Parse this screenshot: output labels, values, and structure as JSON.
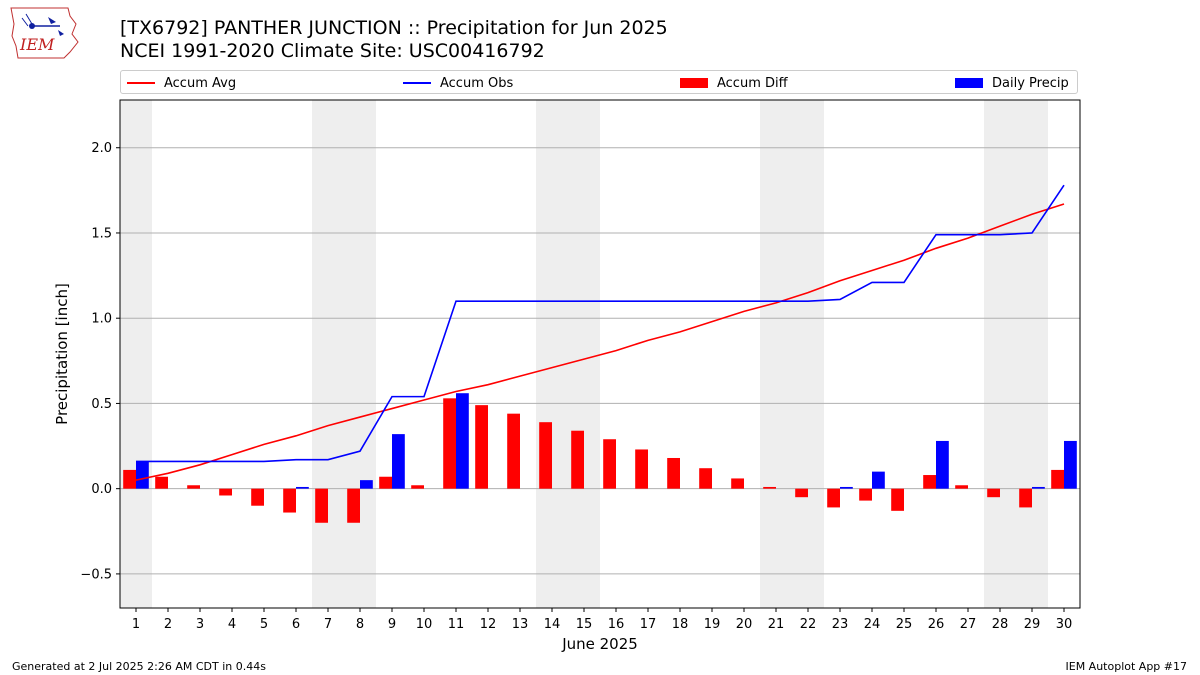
{
  "header": {
    "logo_text": "IEM",
    "title_line1": "[TX6792] PANTHER JUNCTION :: Precipitation for Jun 2025",
    "title_line2": "NCEI 1991-2020 Climate Site: USC00416792"
  },
  "legend": {
    "accum_avg": "Accum Avg",
    "accum_obs": "Accum Obs",
    "accum_diff": "Accum Diff",
    "daily_precip": "Daily Precip"
  },
  "colors": {
    "avg": "#ff0000",
    "obs": "#0000ff",
    "diff": "#ff0000",
    "daily": "#0000ff",
    "weekend_band": "#eeeeee",
    "grid": "#b0b0b0"
  },
  "footer": {
    "left": "Generated at 2 Jul 2025 2:26 AM CDT in 0.44s",
    "right": "IEM Autoplot App #17"
  },
  "chart_data": {
    "type": "bar",
    "xlabel": "June 2025",
    "ylabel": "Precipitation [inch]",
    "x": [
      1,
      2,
      3,
      4,
      5,
      6,
      7,
      8,
      9,
      10,
      11,
      12,
      13,
      14,
      15,
      16,
      17,
      18,
      19,
      20,
      21,
      22,
      23,
      24,
      25,
      26,
      27,
      28,
      29,
      30
    ],
    "xlim": [
      0.5,
      30.5
    ],
    "ylim": [
      -0.7,
      2.28
    ],
    "yticks": [
      -0.5,
      0.0,
      0.5,
      1.0,
      1.5,
      2.0
    ],
    "ytick_labels": [
      "−0.5",
      "0.0",
      "0.5",
      "1.0",
      "1.5",
      "2.0"
    ],
    "grid": "horizontal",
    "weekend_bands": [
      [
        0.5,
        1.5
      ],
      [
        6.5,
        8.5
      ],
      [
        13.5,
        15.5
      ],
      [
        20.5,
        22.5
      ],
      [
        27.5,
        29.5
      ]
    ],
    "series": [
      {
        "name": "Accum Avg",
        "type": "line",
        "values": [
          0.05,
          0.09,
          0.14,
          0.2,
          0.26,
          0.31,
          0.37,
          0.42,
          0.47,
          0.52,
          0.57,
          0.61,
          0.66,
          0.71,
          0.76,
          0.81,
          0.87,
          0.92,
          0.98,
          1.04,
          1.09,
          1.15,
          1.22,
          1.28,
          1.34,
          1.41,
          1.47,
          1.54,
          1.61,
          1.67
        ]
      },
      {
        "name": "Accum Obs",
        "type": "line",
        "values": [
          0.16,
          0.16,
          0.16,
          0.16,
          0.16,
          0.17,
          0.17,
          0.22,
          0.54,
          0.54,
          1.1,
          1.1,
          1.1,
          1.1,
          1.1,
          1.1,
          1.1,
          1.1,
          1.1,
          1.1,
          1.1,
          1.1,
          1.11,
          1.21,
          1.21,
          1.49,
          1.49,
          1.49,
          1.5,
          1.78
        ]
      },
      {
        "name": "Accum Diff",
        "type": "bar",
        "values": [
          0.11,
          0.07,
          0.02,
          -0.04,
          -0.1,
          -0.14,
          -0.2,
          -0.2,
          0.07,
          0.02,
          0.53,
          0.49,
          0.44,
          0.39,
          0.34,
          0.29,
          0.23,
          0.18,
          0.12,
          0.06,
          0.01,
          -0.05,
          -0.11,
          -0.07,
          -0.13,
          0.08,
          0.02,
          -0.05,
          -0.11,
          0.11
        ]
      },
      {
        "name": "Daily Precip",
        "type": "bar",
        "values": [
          0.16,
          0.0,
          0.0,
          0.0,
          0.0,
          0.01,
          0.0,
          0.05,
          0.32,
          0.0,
          0.56,
          0.0,
          0.0,
          0.0,
          0.0,
          0.0,
          0.0,
          0.0,
          0.0,
          0.0,
          0.0,
          0.0,
          0.01,
          0.1,
          0.0,
          0.28,
          0.0,
          0.0,
          0.01,
          0.28
        ]
      }
    ]
  }
}
